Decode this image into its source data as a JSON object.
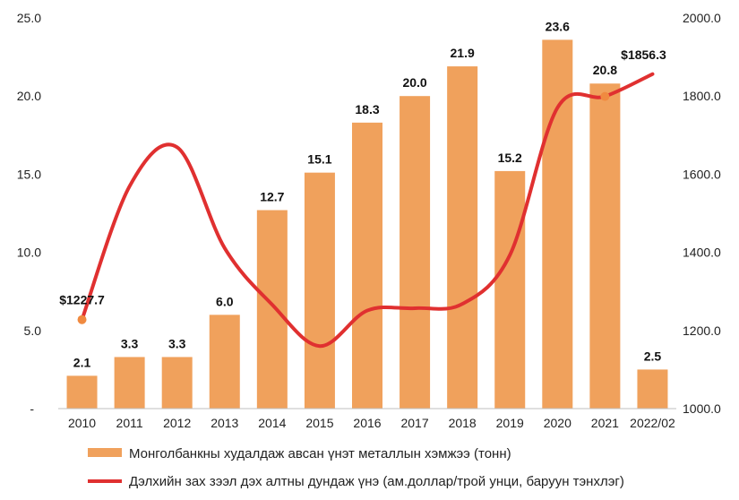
{
  "chart_data": {
    "type": "bar+line",
    "categories": [
      "2010",
      "2011",
      "2012",
      "2013",
      "2014",
      "2015",
      "2016",
      "2017",
      "2018",
      "2019",
      "2020",
      "2021",
      "2022/02"
    ],
    "bar_series": {
      "name": "Монголбанкны худалдаж авсан үнэт металлын хэмжээ (тонн)",
      "values": [
        2.1,
        3.3,
        3.3,
        6.0,
        12.7,
        15.1,
        18.3,
        20.0,
        21.9,
        15.2,
        23.6,
        20.8,
        2.5
      ],
      "labels": [
        "2.1",
        "3.3",
        "3.3",
        "6.0",
        "12.7",
        "15.1",
        "18.3",
        "20.0",
        "21.9",
        "15.2",
        "23.6",
        "20.8",
        "2.5"
      ],
      "color": "#F0A15C"
    },
    "line_series": {
      "name": "Дэлхийн зах зээл дэх алтны дундаж үнэ (ам.доллар/трой унци, баруун тэнхлэг)",
      "values": [
        1227.7,
        1569,
        1669,
        1411,
        1266,
        1160,
        1251,
        1257,
        1268,
        1393,
        1770,
        1799,
        1856.3
      ],
      "color": "#E03030",
      "marker_color": "#F08A40"
    },
    "annotations": {
      "first_price": "$1227.7",
      "last_price": "$1856.3"
    },
    "y_left": {
      "ticks": [
        "-",
        "5.0",
        "10.0",
        "15.0",
        "20.0",
        "25.0"
      ],
      "range": [
        0,
        25
      ]
    },
    "y_right": {
      "ticks": [
        "1000.0",
        "1200.0",
        "1400.0",
        "1600.0",
        "1800.0",
        "2000.0"
      ],
      "range": [
        1000,
        2000
      ]
    },
    "legend": {
      "placement": "bottom",
      "bar_label": "Монголбанкны худалдаж авсан үнэт металлын хэмжээ (тонн)",
      "line_label": "Дэлхийн зах зээл дэх алтны дундаж үнэ (ам.доллар/трой унци, баруун тэнхлэг)"
    },
    "grid": false
  }
}
